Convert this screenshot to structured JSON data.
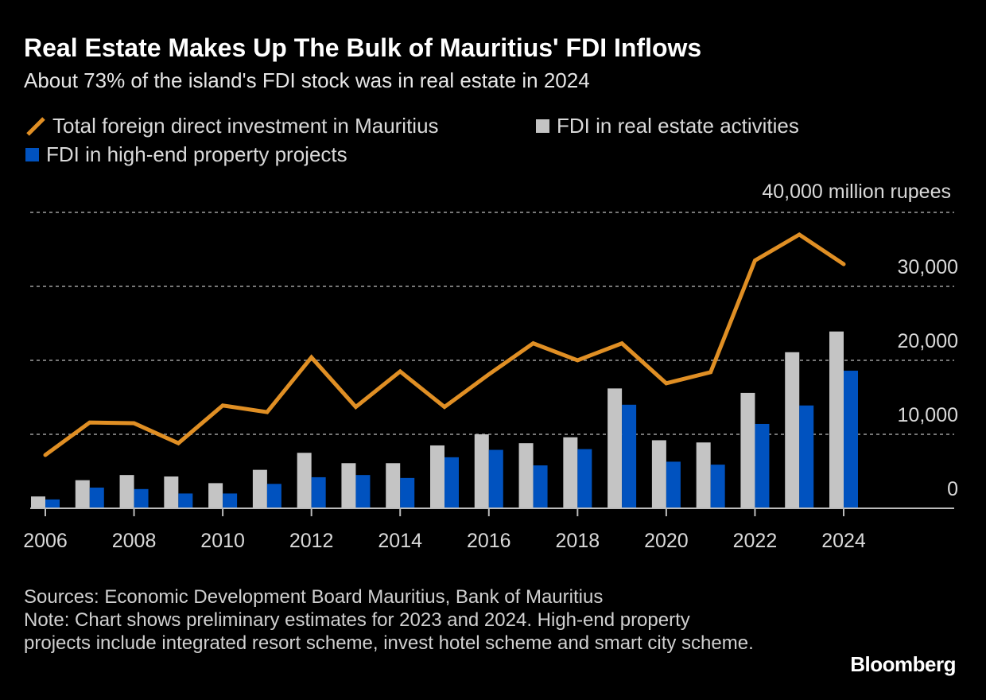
{
  "chart_data": {
    "type": "bar",
    "title": "Real Estate Makes Up The Bulk of Mauritius' FDI Inflows",
    "subtitle": "About 73% of the island's FDI stock was in real estate in 2024",
    "ylabel": "40,000 million rupees",
    "ylim": [
      0,
      40000
    ],
    "yticks": [
      "0",
      "10,000",
      "20,000",
      "30,000"
    ],
    "yticks_values": [
      0,
      10000,
      20000,
      30000,
      40000
    ],
    "xticks": [
      "2006",
      "2008",
      "2010",
      "2012",
      "2014",
      "2016",
      "2018",
      "2020",
      "2022",
      "2024"
    ],
    "categories": [
      2006,
      2007,
      2008,
      2009,
      2010,
      2011,
      2012,
      2013,
      2014,
      2015,
      2016,
      2017,
      2018,
      2019,
      2020,
      2021,
      2022,
      2023,
      2024
    ],
    "grid": true,
    "legend_placement": "top",
    "series": [
      {
        "name": "Total foreign direct investment in Mauritius",
        "type": "line",
        "color": "#e08f24",
        "values": [
          7200,
          11600,
          11500,
          8800,
          13900,
          13000,
          20400,
          13700,
          18500,
          13700,
          18100,
          22300,
          20000,
          22300,
          16900,
          18400,
          33500,
          37000,
          33000
        ]
      },
      {
        "name": "FDI in real estate activities",
        "type": "bar",
        "color": "#c4c4c4",
        "values": [
          1600,
          3800,
          4500,
          4300,
          3400,
          5200,
          7500,
          6100,
          6100,
          8500,
          10000,
          8800,
          9600,
          16200,
          9200,
          8900,
          15600,
          21100,
          23900
        ]
      },
      {
        "name": "FDI in high-end property projects",
        "type": "bar",
        "color": "#0052bf",
        "values": [
          1200,
          2800,
          2600,
          2000,
          2000,
          3300,
          4200,
          4500,
          4100,
          6900,
          7900,
          5800,
          8000,
          14000,
          6300,
          5900,
          11400,
          13900,
          18600
        ]
      }
    ]
  },
  "footer": {
    "sources": "Sources: Economic Development Board Mauritius, Bank of Mauritius",
    "note": "Note: Chart shows preliminary estimates for 2023 and 2024. High-end property projects include integrated resort scheme, invest hotel scheme and smart city scheme."
  },
  "logo": "Bloomberg"
}
